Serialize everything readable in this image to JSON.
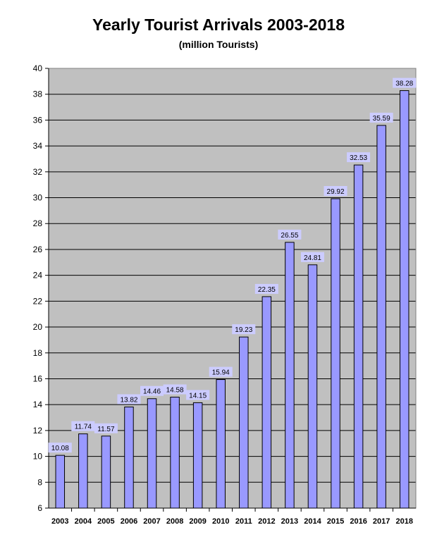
{
  "chart_data": {
    "type": "bar",
    "title": "Yearly Tourist Arrivals 2003-2018",
    "subtitle": "(million Tourists)",
    "xlabel": "",
    "ylabel": "",
    "categories": [
      "2003",
      "2004",
      "2005",
      "2006",
      "2007",
      "2008",
      "2009",
      "2010",
      "2011",
      "2012",
      "2013",
      "2014",
      "2015",
      "2016",
      "2017",
      "2018"
    ],
    "values": [
      10.08,
      11.74,
      11.57,
      13.82,
      14.46,
      14.58,
      14.15,
      15.94,
      19.23,
      22.35,
      26.55,
      24.81,
      29.92,
      32.53,
      35.59,
      38.28
    ],
    "value_labels": [
      "10.08",
      "11.74",
      "11.57",
      "13.82",
      "14.46",
      "14.58",
      "14.15",
      "15.94",
      "19.23",
      "22.35",
      "26.55",
      "24.81",
      "29.92",
      "32.53",
      "35.59",
      "38.28"
    ],
    "ylim": [
      6,
      40
    ],
    "yticks": [
      "6",
      "8",
      "10",
      "12",
      "14",
      "16",
      "18",
      "20",
      "22",
      "24",
      "26",
      "28",
      "30",
      "32",
      "34",
      "36",
      "38",
      "40"
    ],
    "grid": true,
    "legend": "none",
    "colors": {
      "plot_background": "#c0c0c0",
      "bar_fill": "#9999ff",
      "bar_stroke": "#000000",
      "gridline": "#000000",
      "label_background": "#ccccff"
    }
  }
}
